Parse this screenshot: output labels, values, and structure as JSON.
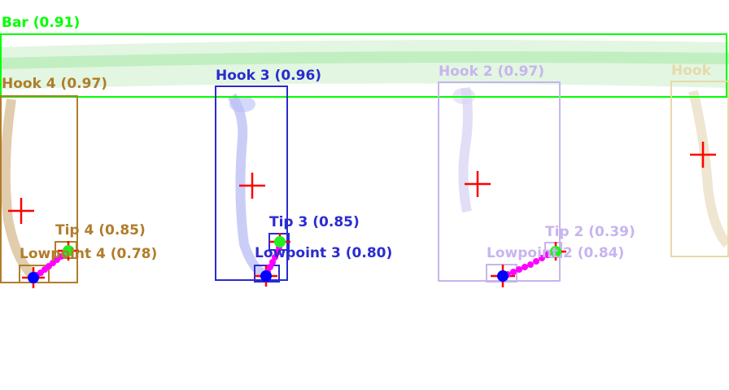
{
  "colors": {
    "bar": "#00ff00",
    "hook4": "#b07d2a",
    "hook3": "#2b2bd0",
    "hook2": "#c8b4ee",
    "hook1": "#e8d9a8",
    "center_cross": "#ff0000",
    "tip": "#22ee22",
    "lowpoint": "#0000ff",
    "path": "#ff00ff"
  },
  "labels": {
    "bar": "Bar (0.91)",
    "hook4": "Hook 4 (0.97)",
    "hook3": "Hook 3 (0.96)",
    "hook2": "Hook 2 (0.97)",
    "hook1": "Hook",
    "tip4": "Tip 4 (0.85)",
    "lowpoint4": "Lowpoint 4 (0.78)",
    "tip3": "Tip 3 (0.85)",
    "lowpoint3": "Lowpoint 3 (0.80)",
    "tip2": "Tip 2 (0.39)",
    "lowpoint2": "Lowpoint 2 (0.84)"
  }
}
